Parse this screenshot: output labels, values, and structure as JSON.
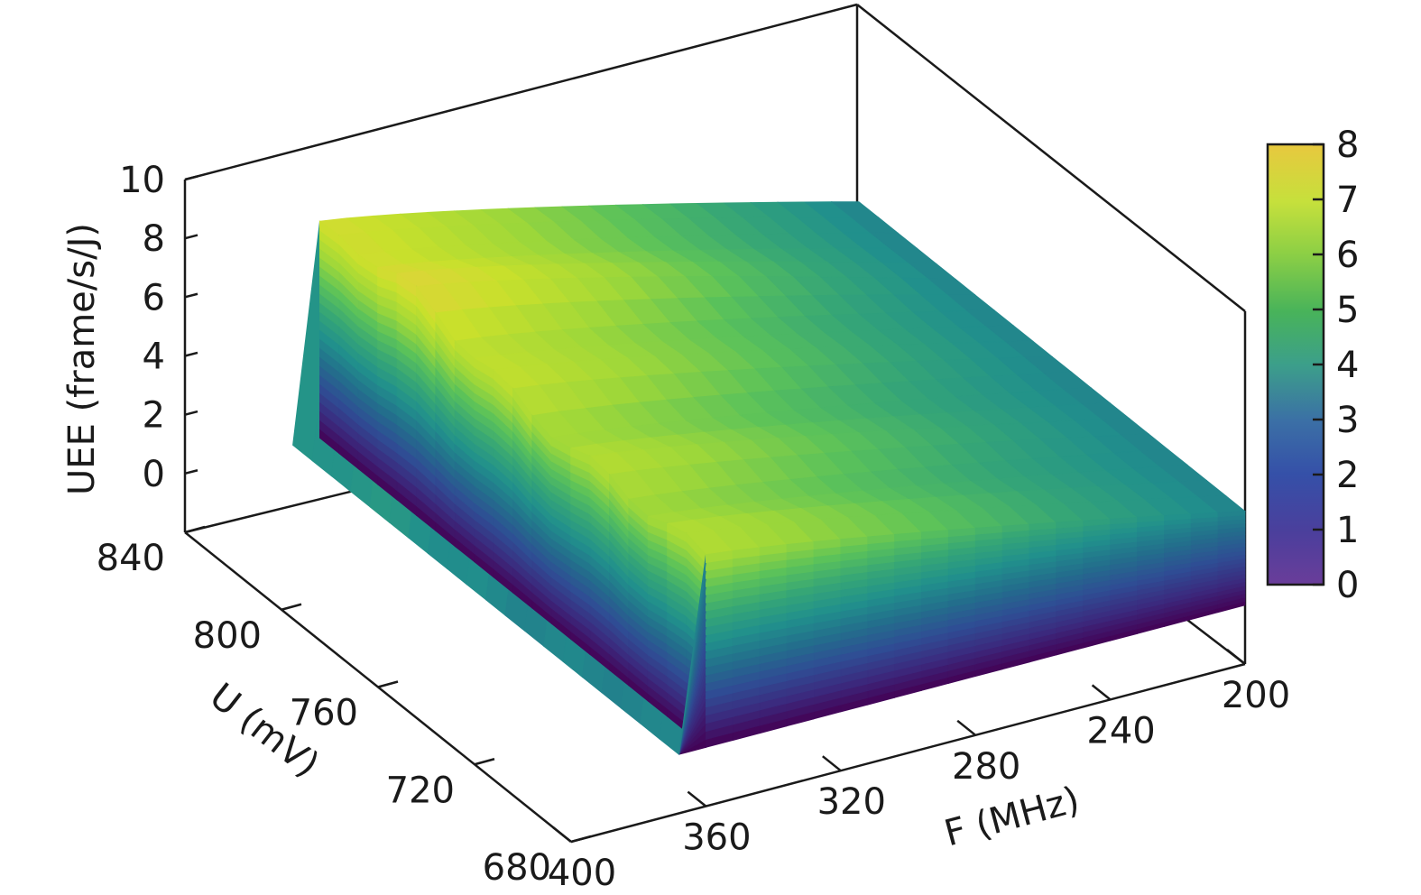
{
  "chart_data": {
    "type": "surface",
    "zlabel": "UEE (frame/s/J)",
    "ylabel": "U (mV)",
    "xlabel": "F (MHz)",
    "z_ticks": [
      "0",
      "2",
      "4",
      "6",
      "8",
      "10"
    ],
    "u_ticks": [
      "840",
      "800",
      "760",
      "720",
      "680"
    ],
    "f_ticks": [
      "400",
      "360",
      "320",
      "280",
      "240",
      "200"
    ],
    "colorbar_ticks": [
      "0",
      "1",
      "2",
      "3",
      "4",
      "5",
      "6",
      "7",
      "8"
    ],
    "zlim": [
      -2,
      10
    ],
    "colorbar_range": [
      0,
      8
    ],
    "u_range": [
      680,
      840
    ],
    "f_range": [
      200,
      400
    ],
    "surface_region": {
      "u_min": 680,
      "u_max": 840,
      "f_min": 200,
      "f_max": 360
    },
    "ridge": {
      "z_min_edge": 6.5,
      "z_peak": 7.6,
      "z_f200": 3.2
    },
    "colormap": [
      "#440154",
      "#3b2a7e",
      "#2f4d94",
      "#236e8c",
      "#21908c",
      "#36a676",
      "#5bc25a",
      "#9dd73a",
      "#c8e02c",
      "#e4d23c"
    ]
  }
}
